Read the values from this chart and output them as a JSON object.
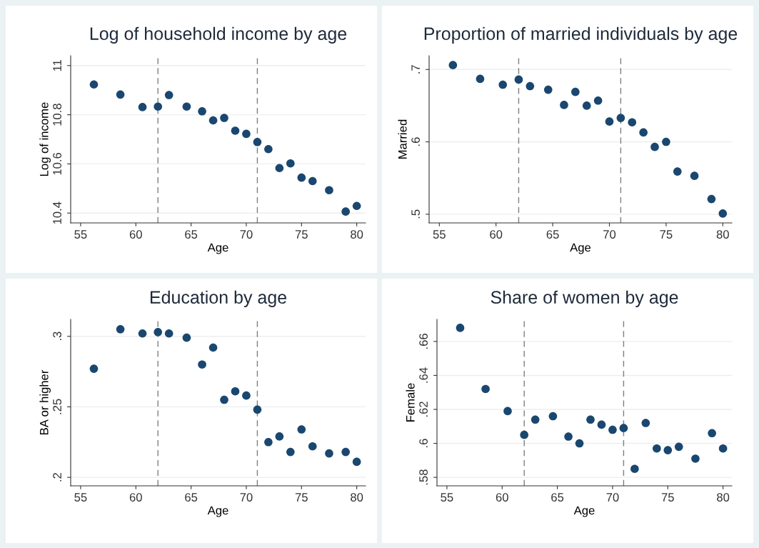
{
  "chart_data": [
    {
      "type": "scatter",
      "title": "Log of household income by age",
      "xlabel": "Age",
      "ylabel": "Log of income",
      "color": "#1a476f",
      "marker": "circle",
      "grid": "y",
      "x": [
        56.2,
        58.6,
        60.6,
        62,
        63,
        64.6,
        66,
        67,
        68,
        69,
        70,
        71,
        72,
        73,
        74,
        75,
        76,
        77.5,
        79,
        80
      ],
      "values": [
        10.923,
        10.882,
        10.831,
        10.833,
        10.88,
        10.833,
        10.814,
        10.777,
        10.787,
        10.735,
        10.722,
        10.689,
        10.66,
        10.583,
        10.602,
        10.544,
        10.53,
        10.493,
        10.406,
        10.429
      ],
      "xlim": [
        54.1,
        80.8
      ],
      "xticks": [
        55,
        60,
        65,
        70,
        75,
        80
      ],
      "ylim": [
        10.36,
        11.04
      ],
      "yticks": [
        10.4,
        10.6,
        10.8,
        11
      ],
      "ref_lines": [
        {
          "axis": "x",
          "value": 62,
          "color": "#7f7f7f",
          "line_style": "dashed"
        },
        {
          "axis": "x",
          "value": 71,
          "color": "#7f7f7f",
          "line_style": "dashed"
        }
      ]
    },
    {
      "type": "scatter",
      "title": "Proportion of married individuals by age",
      "xlabel": "Age",
      "ylabel": "Married",
      "color": "#1a476f",
      "marker": "circle",
      "grid": "y",
      "x": [
        56.2,
        58.6,
        60.6,
        62,
        63,
        64.6,
        66,
        67,
        68,
        69,
        70,
        71,
        72,
        73,
        74,
        75,
        76,
        77.5,
        79,
        80
      ],
      "values": [
        0.706,
        0.687,
        0.679,
        0.686,
        0.677,
        0.672,
        0.651,
        0.669,
        0.65,
        0.657,
        0.628,
        0.633,
        0.627,
        0.613,
        0.593,
        0.6,
        0.559,
        0.553,
        0.521,
        0.501
      ],
      "xlim": [
        54.1,
        80.8
      ],
      "xticks": [
        55,
        60,
        65,
        70,
        75,
        80
      ],
      "ylim": [
        0.488,
        0.719
      ],
      "yticks": [
        {
          "value": 0.5,
          "label": ".5"
        },
        {
          "value": 0.6,
          "label": ".6"
        },
        {
          "value": 0.7,
          "label": ".7"
        }
      ],
      "ref_lines": [
        {
          "axis": "x",
          "value": 62,
          "color": "#7f7f7f",
          "line_style": "dashed"
        },
        {
          "axis": "x",
          "value": 71,
          "color": "#7f7f7f",
          "line_style": "dashed"
        }
      ]
    },
    {
      "type": "scatter",
      "title": "Education by age",
      "xlabel": "Age",
      "ylabel": "BA or higher",
      "color": "#1a476f",
      "marker": "circle",
      "grid": "y",
      "x": [
        56.2,
        58.6,
        60.6,
        62,
        63,
        64.6,
        66,
        67,
        68,
        69,
        70,
        71,
        72,
        73,
        74,
        75,
        76,
        77.5,
        79,
        80
      ],
      "values": [
        0.277,
        0.305,
        0.302,
        0.303,
        0.302,
        0.299,
        0.28,
        0.292,
        0.255,
        0.261,
        0.258,
        0.248,
        0.225,
        0.229,
        0.218,
        0.234,
        0.222,
        0.217,
        0.218,
        0.211
      ],
      "xlim": [
        54.1,
        80.8
      ],
      "xticks": [
        55,
        60,
        65,
        70,
        75,
        80
      ],
      "ylim": [
        0.194,
        0.312
      ],
      "yticks": [
        {
          "value": 0.2,
          "label": ".2"
        },
        {
          "value": 0.25,
          "label": ".25"
        },
        {
          "value": 0.3,
          "label": ".3"
        }
      ],
      "ref_lines": [
        {
          "axis": "x",
          "value": 62,
          "color": "#7f7f7f",
          "line_style": "dashed"
        },
        {
          "axis": "x",
          "value": 71,
          "color": "#7f7f7f",
          "line_style": "dashed"
        }
      ]
    },
    {
      "type": "scatter",
      "title": "Share of women by age",
      "xlabel": "Age",
      "ylabel": "Female",
      "color": "#1a476f",
      "marker": "circle",
      "grid": "y",
      "x": [
        56.2,
        58.5,
        60.5,
        62,
        63,
        64.6,
        66,
        67,
        68,
        69,
        70,
        71,
        72,
        73,
        74,
        75,
        76,
        77.5,
        79,
        80
      ],
      "values": [
        0.668,
        0.632,
        0.619,
        0.605,
        0.614,
        0.616,
        0.604,
        0.6,
        0.614,
        0.611,
        0.608,
        0.609,
        0.585,
        0.612,
        0.597,
        0.596,
        0.598,
        0.591,
        0.606,
        0.597
      ],
      "xlim": [
        54.1,
        80.8
      ],
      "xticks": [
        55,
        60,
        65,
        70,
        75,
        80
      ],
      "ylim": [
        0.575,
        0.673
      ],
      "yticks": [
        {
          "value": 0.58,
          "label": ".58"
        },
        {
          "value": 0.6,
          "label": ".6"
        },
        {
          "value": 0.62,
          "label": ".62"
        },
        {
          "value": 0.64,
          "label": ".64"
        },
        {
          "value": 0.66,
          "label": ".66"
        }
      ],
      "ref_lines": [
        {
          "axis": "x",
          "value": 62,
          "color": "#7f7f7f",
          "line_style": "dashed"
        },
        {
          "axis": "x",
          "value": 71,
          "color": "#7f7f7f",
          "line_style": "dashed"
        }
      ]
    }
  ]
}
